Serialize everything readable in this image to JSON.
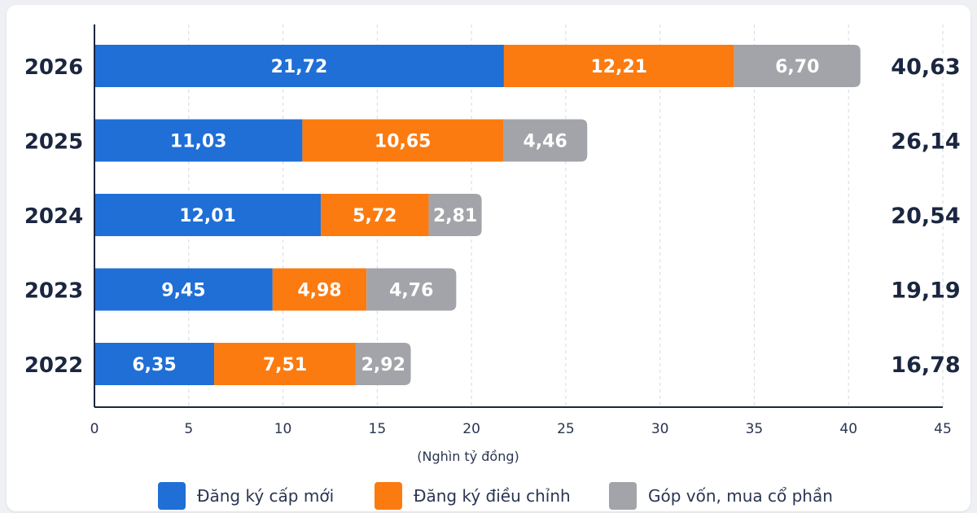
{
  "chart_data": {
    "type": "bar",
    "orientation": "horizontal",
    "stacked": true,
    "categories": [
      "2026",
      "2025",
      "2024",
      "2023",
      "2022"
    ],
    "series": [
      {
        "name": "Đăng ký cấp mới",
        "color": "#1f6fd6",
        "values": [
          21.72,
          11.03,
          12.01,
          9.45,
          6.35
        ],
        "labels": [
          "21,72",
          "11,03",
          "12,01",
          "9,45",
          "6,35"
        ]
      },
      {
        "name": "Đăng ký điều chỉnh",
        "color": "#fb7b10",
        "values": [
          12.21,
          10.65,
          5.72,
          4.98,
          7.51
        ],
        "labels": [
          "12,21",
          "10,65",
          "5,72",
          "4,98",
          "7,51"
        ]
      },
      {
        "name": "Góp vốn, mua cổ phần",
        "color": "#a2a4a9",
        "values": [
          6.7,
          4.46,
          2.81,
          4.76,
          2.92
        ],
        "labels": [
          "6,70",
          "4,46",
          "2,81",
          "4,76",
          "2,92"
        ]
      }
    ],
    "totals": [
      40.63,
      26.14,
      20.54,
      19.19,
      16.78
    ],
    "total_labels": [
      "40,63",
      "26,14",
      "20,54",
      "19,19",
      "16,78"
    ],
    "xlim": [
      0,
      45
    ],
    "xticks": [
      0,
      5,
      10,
      15,
      20,
      25,
      30,
      35,
      40,
      45
    ],
    "xlabel": "(Nghìn tỷ đồng)",
    "ylabel": "",
    "title": "",
    "grid": "vertical-dashed",
    "legend_position": "bottom"
  }
}
